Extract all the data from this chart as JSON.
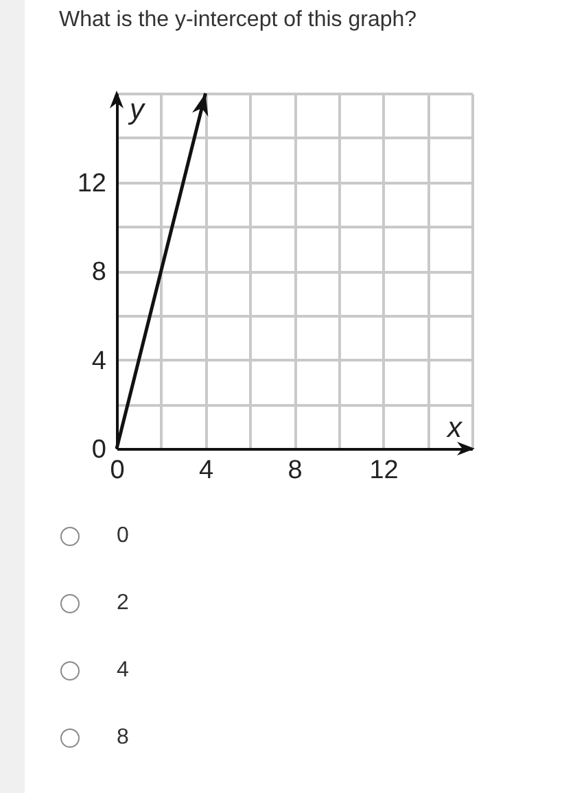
{
  "chart_data": {
    "type": "line",
    "title": "What is the y-intercept of this graph?",
    "xlabel": "x",
    "ylabel": "y",
    "x": [
      0,
      4
    ],
    "values": [
      0,
      16
    ],
    "color": "#111111",
    "xlim": [
      0,
      16
    ],
    "ylim": [
      0,
      16
    ],
    "xticks": [
      0,
      {
        "value": 2,
        "label": null
      },
      4,
      {
        "value": 6,
        "label": null
      },
      8,
      {
        "value": 10,
        "label": null
      },
      12,
      {
        "value": 14,
        "label": null
      },
      {
        "value": 16,
        "label": null
      }
    ],
    "yticks": [
      0,
      {
        "value": 2,
        "label": null
      },
      4,
      {
        "value": 6,
        "label": null
      },
      8,
      {
        "value": 10,
        "label": null
      },
      12,
      {
        "value": 14,
        "label": null
      },
      {
        "value": 16,
        "label": null
      }
    ],
    "grid": true,
    "annotations": [
      "0",
      "2",
      "4",
      "8"
    ]
  }
}
